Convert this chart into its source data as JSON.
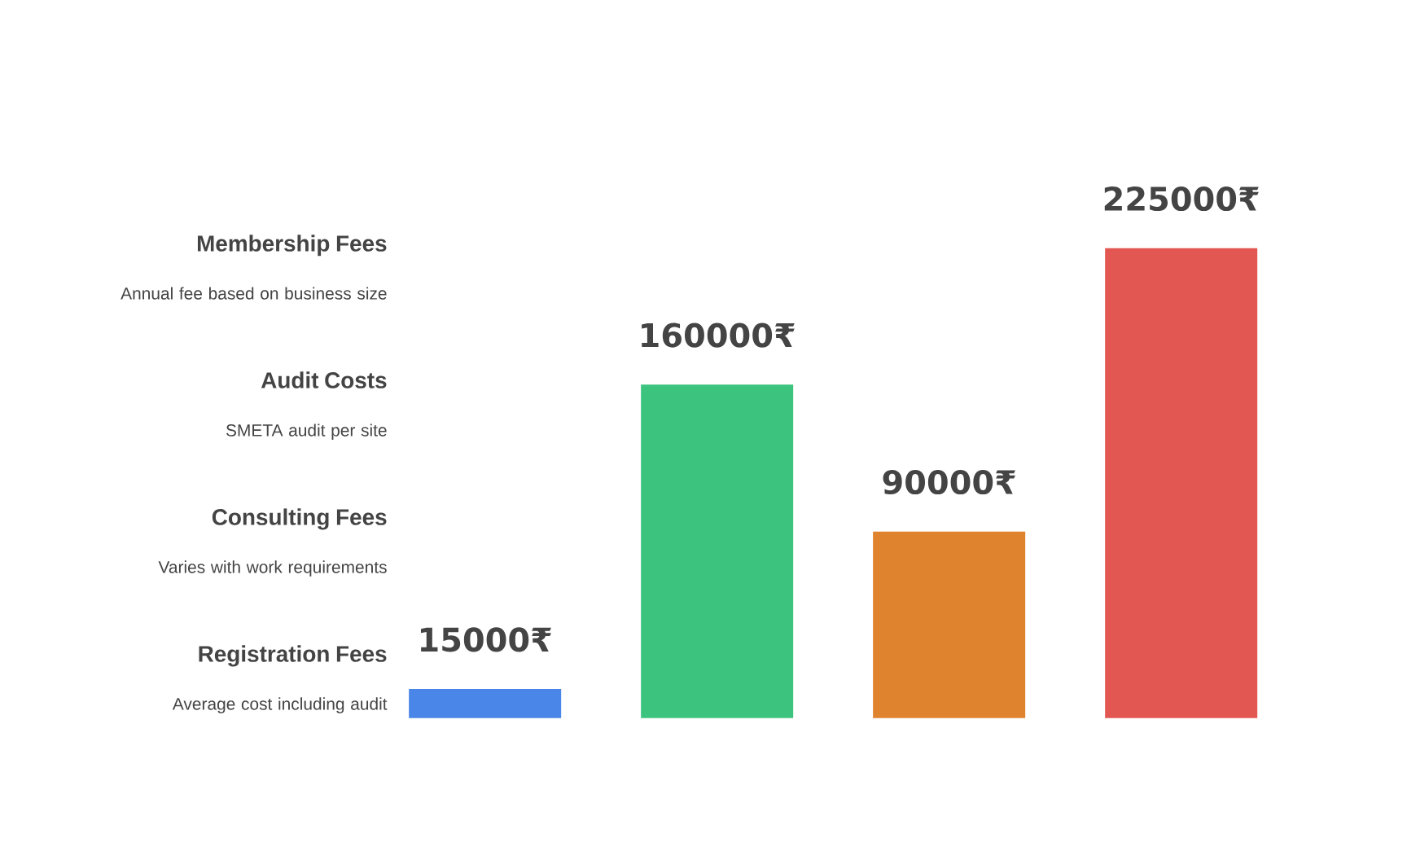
{
  "chart_data": {
    "type": "bar",
    "categories": [
      null,
      null,
      null,
      null
    ],
    "values": [
      15000,
      160000,
      90000,
      225000
    ],
    "colors": [
      "#4a86e8",
      "#3cc47f",
      "#e0832e",
      "#e35753"
    ],
    "value_labels": [
      "15000₹",
      "160000₹",
      "90000₹",
      "225000₹"
    ],
    "annotations": [
      "**Membership Fees**",
      "Annual fee based on business size",
      "**Audit Costs**",
      "SMETA audit per site",
      "**Consulting Fees**",
      "Varies with work requirements",
      "**Registration Fees**",
      "Average cost including audit"
    ]
  }
}
